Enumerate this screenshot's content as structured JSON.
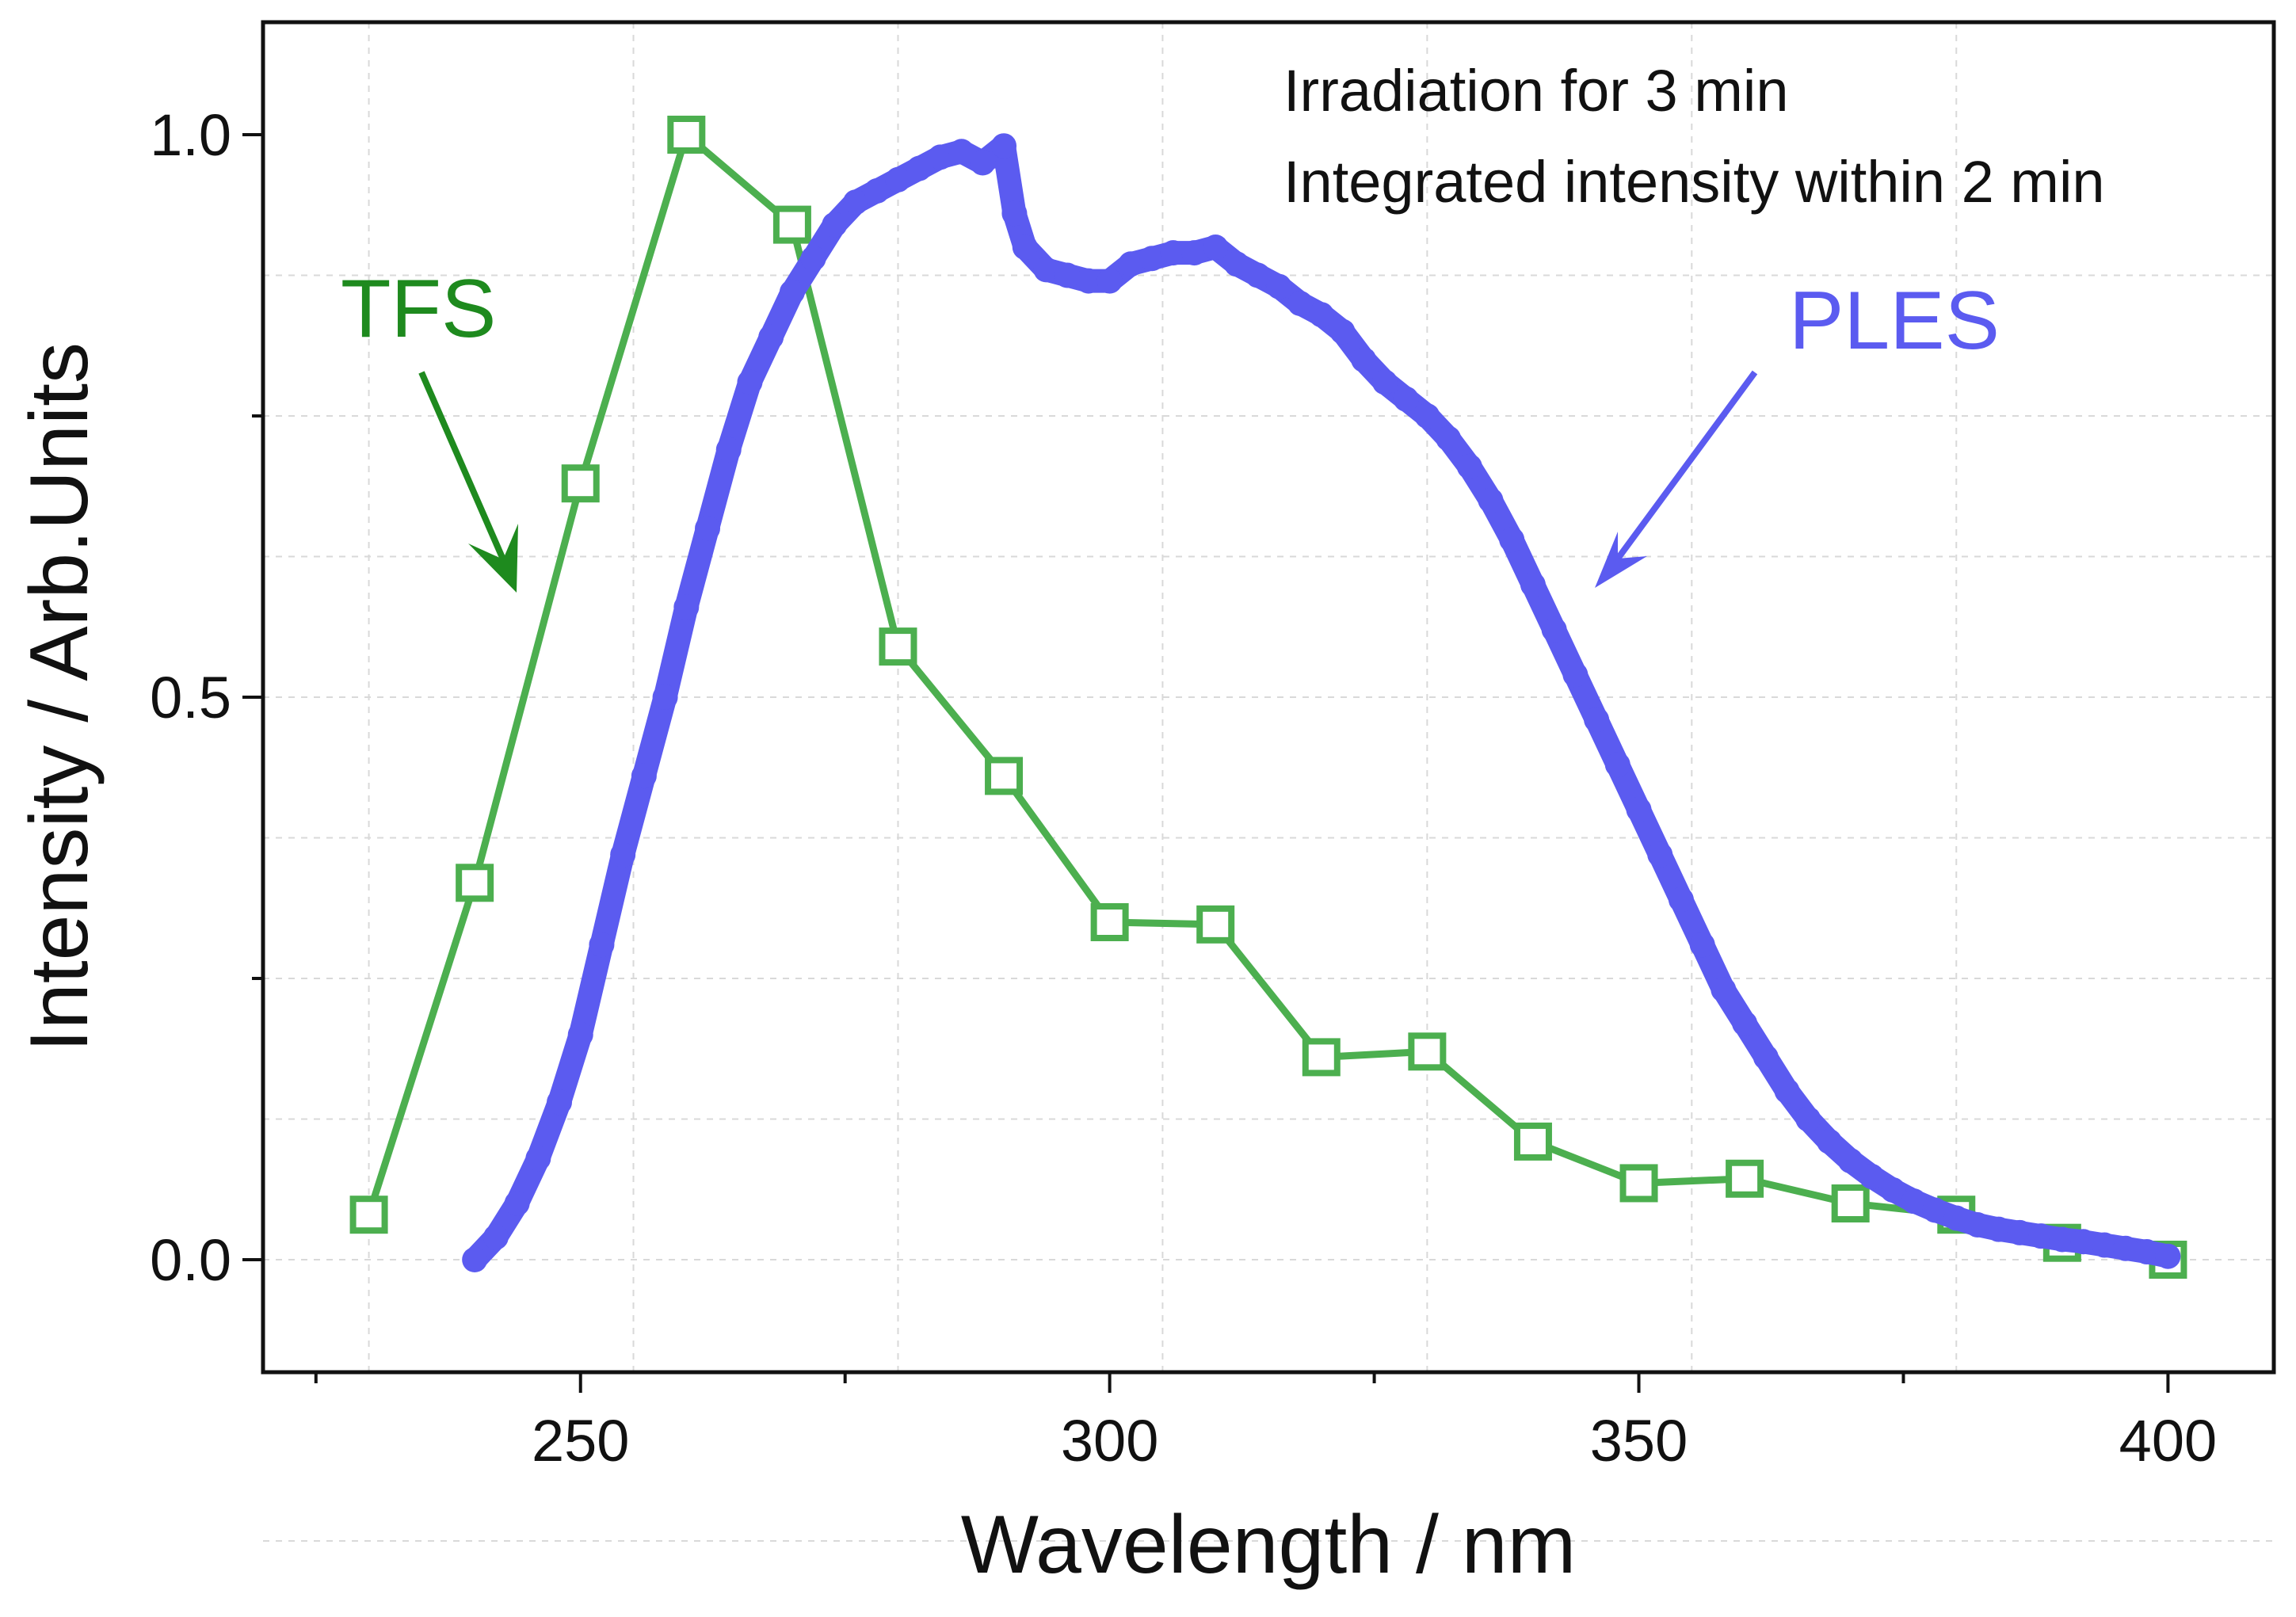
{
  "chart_data": {
    "type": "line",
    "title": "",
    "xlabel": "Wavelength / nm",
    "ylabel": "Intensity / Arb.Units",
    "xlim": [
      220,
      410
    ],
    "ylim": [
      -0.1,
      1.1
    ],
    "xticks": [
      250,
      300,
      350,
      400
    ],
    "xtick_labels": [
      "250",
      "300",
      "350",
      "400"
    ],
    "yticks": [
      0.0,
      0.5,
      1.0
    ],
    "ytick_labels": [
      "0.0",
      "0.5",
      "1.0"
    ],
    "grid": true,
    "annotations": [
      "Irradiation for 3 min",
      "Integrated intensity within 2 min"
    ],
    "series": [
      {
        "name": "TFS",
        "label": "TFS",
        "color": "#4caf4f",
        "label_color": "#1e8a1e",
        "marker": "open-square",
        "x": [
          230,
          240,
          250,
          260,
          270,
          280,
          290,
          300,
          310,
          320,
          330,
          340,
          350,
          360,
          370,
          380,
          390,
          400
        ],
        "values": [
          0.04,
          0.335,
          0.69,
          1.0,
          0.92,
          0.545,
          0.43,
          0.3,
          0.298,
          0.18,
          0.185,
          0.105,
          0.068,
          0.072,
          0.05,
          0.04,
          0.015,
          0.0
        ]
      },
      {
        "name": "PLES",
        "label": "PLES",
        "color": "#5b5bf0",
        "label_color": "#5b5bf0",
        "marker": "filled-circle",
        "x": [
          240,
          242,
          244,
          246,
          248,
          250,
          252,
          254,
          256,
          258,
          260,
          262,
          264,
          266,
          268,
          270,
          272,
          274,
          276,
          278,
          280,
          282,
          284,
          286,
          288,
          290,
          291,
          292,
          294,
          296,
          298,
          300,
          302,
          304,
          306,
          308,
          310,
          312,
          314,
          316,
          318,
          320,
          322,
          324,
          326,
          328,
          330,
          332,
          334,
          336,
          338,
          340,
          342,
          344,
          346,
          348,
          350,
          352,
          354,
          356,
          358,
          360,
          362,
          364,
          366,
          368,
          370,
          372,
          374,
          376,
          378,
          380,
          382,
          384,
          386,
          388,
          390,
          392,
          394,
          396,
          398,
          400
        ],
        "values": [
          0.0,
          0.02,
          0.05,
          0.09,
          0.14,
          0.2,
          0.28,
          0.36,
          0.43,
          0.5,
          0.58,
          0.65,
          0.72,
          0.78,
          0.82,
          0.86,
          0.89,
          0.92,
          0.94,
          0.95,
          0.96,
          0.97,
          0.98,
          0.985,
          0.975,
          0.99,
          0.93,
          0.9,
          0.88,
          0.875,
          0.87,
          0.87,
          0.885,
          0.89,
          0.895,
          0.895,
          0.9,
          0.885,
          0.875,
          0.865,
          0.85,
          0.84,
          0.825,
          0.8,
          0.78,
          0.765,
          0.75,
          0.73,
          0.705,
          0.675,
          0.64,
          0.6,
          0.56,
          0.52,
          0.48,
          0.44,
          0.4,
          0.36,
          0.32,
          0.28,
          0.24,
          0.21,
          0.18,
          0.15,
          0.125,
          0.105,
          0.088,
          0.074,
          0.062,
          0.052,
          0.044,
          0.037,
          0.031,
          0.027,
          0.024,
          0.021,
          0.018,
          0.016,
          0.013,
          0.01,
          0.007,
          0.003
        ]
      }
    ]
  }
}
